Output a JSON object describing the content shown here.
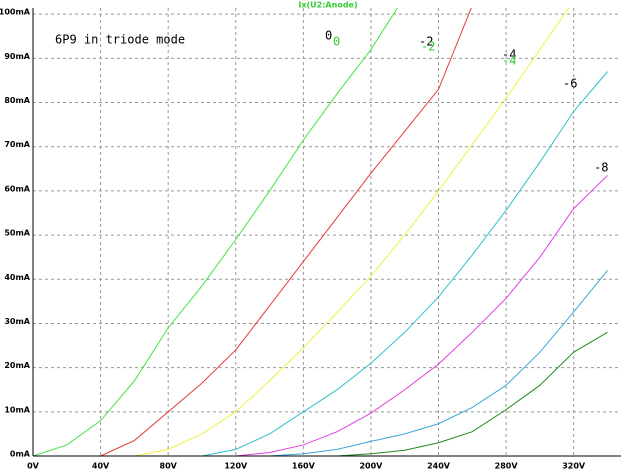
{
  "chart_data": {
    "type": "line",
    "title": "Ix(U2:Anode)",
    "title_color": "#33cc33",
    "x": [
      0,
      20,
      40,
      60,
      80,
      100,
      120,
      140,
      160,
      180,
      200,
      220,
      240,
      260,
      280,
      300,
      320,
      340
    ],
    "xlim": [
      0,
      348
    ],
    "ylim": [
      0,
      101.4
    ],
    "xticks": [
      {
        "value": 0,
        "label": "0V"
      },
      {
        "value": 40,
        "label": "40V"
      },
      {
        "value": 80,
        "label": "80V"
      },
      {
        "value": 120,
        "label": "120V"
      },
      {
        "value": 160,
        "label": "160V"
      },
      {
        "value": 200,
        "label": "200V"
      },
      {
        "value": 240,
        "label": "240V"
      },
      {
        "value": 280,
        "label": "280V"
      },
      {
        "value": 320,
        "label": "320V"
      }
    ],
    "yticks": [
      {
        "value": 0,
        "label": "0mA"
      },
      {
        "value": 10,
        "label": "10mA"
      },
      {
        "value": 20,
        "label": "20mA"
      },
      {
        "value": 30,
        "label": "30mA"
      },
      {
        "value": 40,
        "label": "40mA"
      },
      {
        "value": 50,
        "label": "50mA"
      },
      {
        "value": 60,
        "label": "60mA"
      },
      {
        "value": 70,
        "label": "70mA"
      },
      {
        "value": 80,
        "label": "80mA"
      },
      {
        "value": 90,
        "label": "90mA"
      },
      {
        "value": 100,
        "label": "100mA"
      }
    ],
    "grid": true,
    "series": [
      {
        "color": "#44e044",
        "values": [
          0,
          2.5,
          8,
          17,
          29,
          38.5,
          49,
          60,
          71.5,
          82,
          92,
          104,
          null,
          null,
          null,
          null,
          null,
          null
        ]
      },
      {
        "color": "#e83a3a",
        "values": [
          0,
          0,
          0,
          3.5,
          10,
          16.5,
          24,
          34,
          44,
          54,
          64,
          73.5,
          83,
          102,
          null,
          null,
          null,
          null
        ]
      },
      {
        "color": "#f2f040",
        "values": [
          0,
          0,
          0,
          0,
          1.5,
          5,
          10,
          17,
          24.5,
          32.5,
          40.7,
          50,
          60,
          70.5,
          81,
          92,
          103,
          null
        ]
      },
      {
        "color": "#30c0cc",
        "values": [
          0,
          0,
          0,
          0,
          0,
          0,
          1.5,
          5,
          10,
          15,
          21,
          28,
          36,
          45.5,
          55.6,
          66.5,
          78,
          87
        ]
      },
      {
        "color": "#e040e0",
        "values": [
          0,
          0,
          0,
          0,
          0,
          0,
          0,
          0.8,
          2.5,
          5.5,
          9.7,
          15,
          20.8,
          28,
          35.7,
          45,
          56,
          63.5
        ]
      },
      {
        "color": "#3aa8d8",
        "values": [
          0,
          0,
          0,
          0,
          0,
          0,
          0,
          0,
          0.5,
          1.5,
          3.3,
          5,
          7.3,
          11,
          16,
          23.5,
          32.6,
          42
        ]
      },
      {
        "color": "#208a20",
        "values": [
          0,
          0,
          0,
          0,
          0,
          0,
          0,
          0,
          0,
          0,
          0.5,
          1.3,
          3,
          5.5,
          10.5,
          16,
          23.5,
          28
        ]
      }
    ],
    "annotations": [
      {
        "text": "6P9 in triode mode",
        "color": "#000000"
      },
      {
        "text": "0",
        "color": "#000000"
      },
      {
        "text": "0",
        "color": "#33cc33"
      },
      {
        "text": "-2",
        "color": "#000000"
      },
      {
        "text": "-2",
        "color": "#33cc33"
      },
      {
        "text": "-4",
        "color": "#000000"
      },
      {
        "text": "-4",
        "color": "#33cc33"
      },
      {
        "text": "-6",
        "color": "#000000"
      },
      {
        "text": "-8",
        "color": "#000000"
      }
    ]
  }
}
